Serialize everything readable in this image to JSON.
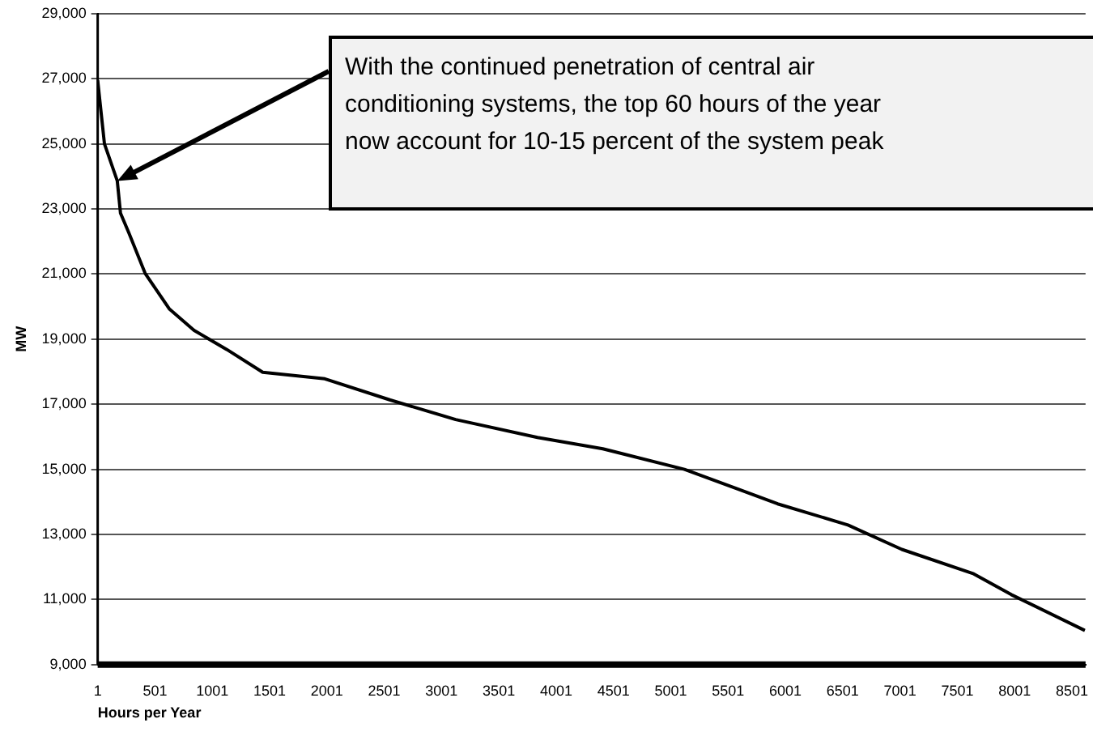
{
  "chart_data": {
    "type": "line",
    "xlabel": "Hours per Year",
    "ylabel": "MW",
    "x": [
      1,
      60,
      172,
      200,
      272,
      415,
      628,
      842,
      1128,
      1441,
      1983,
      2554,
      3124,
      3838,
      4408,
      5120,
      5590,
      5933,
      6547,
      7017,
      7644,
      7972,
      8614
    ],
    "series": [
      {
        "color": "#000000",
        "values": [
          26950,
          25000,
          23860,
          22870,
          22270,
          21020,
          19920,
          19270,
          18680,
          17980,
          17780,
          17130,
          16530,
          15980,
          15630,
          15000,
          14390,
          13940,
          13290,
          12540,
          11790,
          11150,
          10050
        ]
      }
    ],
    "xlim": [
      1,
      8620
    ],
    "xticks": [
      1,
      501,
      1001,
      1501,
      2001,
      2501,
      3001,
      3501,
      4001,
      4501,
      5001,
      5501,
      6001,
      6501,
      7001,
      7501,
      8001,
      8501
    ],
    "ylim": [
      9000,
      29000
    ],
    "yticks": [
      {
        "value": 9000,
        "label": "9,000"
      },
      {
        "value": 11000,
        "label": "11,000"
      },
      {
        "value": 13000,
        "label": "13,000"
      },
      {
        "value": 15000,
        "label": "15,000"
      },
      {
        "value": 17000,
        "label": "17,000"
      },
      {
        "value": 19000,
        "label": "19,000"
      },
      {
        "value": 21000,
        "label": "21,000"
      },
      {
        "value": 23000,
        "label": "23,000"
      },
      {
        "value": 25000,
        "label": "25,000"
      },
      {
        "value": 27000,
        "label": "27,000"
      },
      {
        "value": 29000,
        "label": "29,000"
      }
    ],
    "grid": "y",
    "legend": false,
    "marker": "none",
    "line_style": "solid",
    "annotations": [
      {
        "text": "With the continued penetration of central air conditioning systems, the top 60 hours of the year now account for 10-15 percent of the system peak",
        "x": 172,
        "y": 23860
      }
    ]
  }
}
